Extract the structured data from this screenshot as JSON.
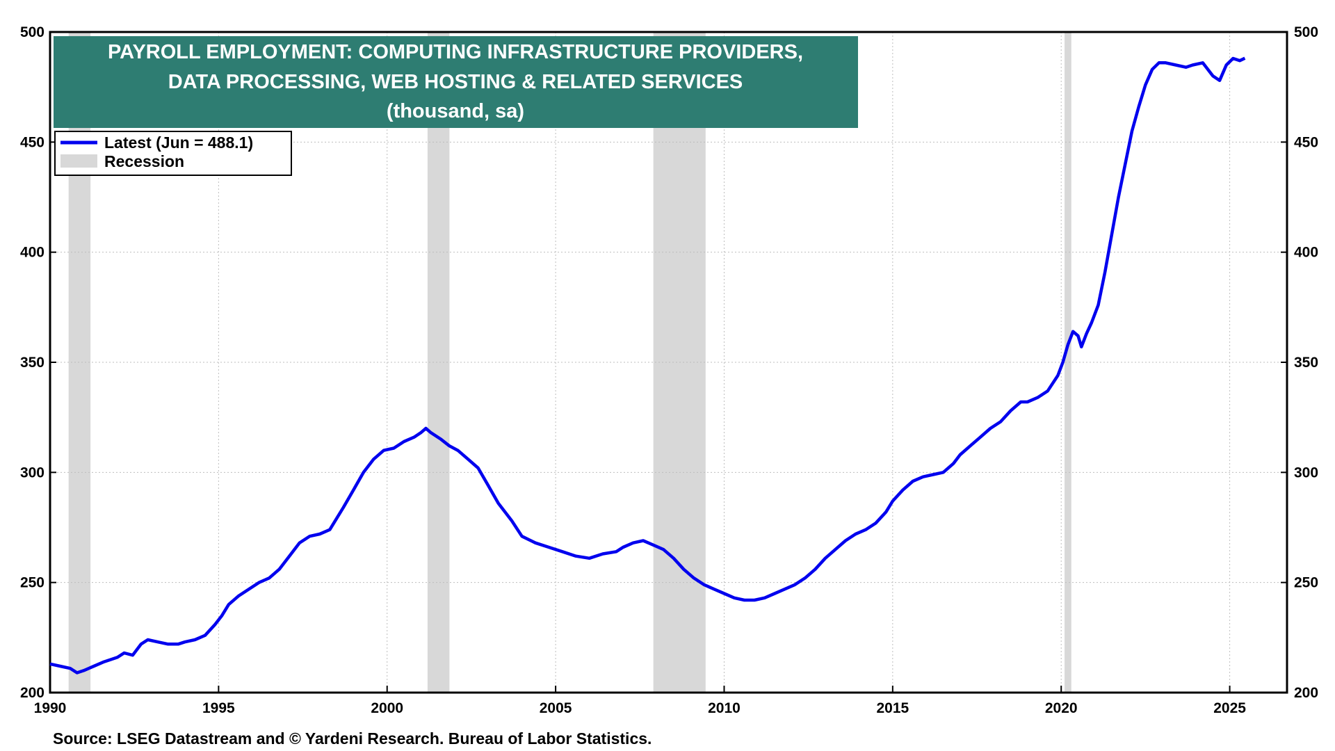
{
  "chart_data": {
    "type": "line",
    "title_lines": [
      "PAYROLL EMPLOYMENT: COMPUTING INFRASTRUCTURE PROVIDERS,",
      "DATA PROCESSING, WEB HOSTING & RELATED SERVICES",
      "(thousand, sa)"
    ],
    "source": "Source: LSEG Datastream and © Yardeni Research. Bureau of Labor Statistics.",
    "legend": {
      "placement": "top-left",
      "latest_label": "Latest (Jun = 488.1)",
      "recession_label": "Recession"
    },
    "xlim": [
      1990,
      2026.7
    ],
    "ylim": [
      200,
      500
    ],
    "x_ticks": [
      1990,
      1995,
      2000,
      2005,
      2010,
      2015,
      2020,
      2025
    ],
    "x_tick_labels": [
      "1990",
      "1995",
      "2000",
      "2005",
      "2010",
      "2015",
      "2020",
      "2025"
    ],
    "y_ticks": [
      200,
      250,
      300,
      350,
      400,
      450,
      500
    ],
    "y_tick_labels": [
      "200",
      "250",
      "300",
      "350",
      "400",
      "450",
      "500"
    ],
    "grid": true,
    "colors": {
      "series": "#0000ee",
      "recession": "#d8d8d8",
      "title_bg": "#2e7d72",
      "grid": "#bdbdbd"
    },
    "recessions": [
      [
        1990.55,
        1991.2
      ],
      [
        2001.2,
        2001.85
      ],
      [
        2007.9,
        2009.45
      ],
      [
        2020.1,
        2020.3
      ]
    ],
    "series": [
      {
        "x": [
          1990.0,
          1990.3,
          1990.6,
          1990.8,
          1991.0,
          1991.3,
          1991.6,
          1991.8,
          1992.0,
          1992.2,
          1992.45,
          1992.7,
          1992.9,
          1993.2,
          1993.5,
          1993.8,
          1994.0,
          1994.3,
          1994.6,
          1994.9,
          1995.1,
          1995.3,
          1995.6,
          1995.9,
          1996.2,
          1996.5,
          1996.8,
          1997.1,
          1997.4,
          1997.7,
          1998.0,
          1998.3,
          1998.5,
          1998.7,
          1999.0,
          1999.3,
          1999.6,
          1999.9,
          2000.2,
          2000.5,
          2000.8,
          2001.0,
          2001.15,
          2001.3,
          2001.6,
          2001.85,
          2002.1,
          2002.4,
          2002.7,
          2003.0,
          2003.3,
          2003.7,
          2004.0,
          2004.4,
          2004.8,
          2005.2,
          2005.6,
          2006.0,
          2006.4,
          2006.8,
          2007.0,
          2007.3,
          2007.6,
          2007.9,
          2008.2,
          2008.5,
          2008.8,
          2009.1,
          2009.4,
          2009.7,
          2010.0,
          2010.3,
          2010.6,
          2010.9,
          2011.2,
          2011.5,
          2011.8,
          2012.1,
          2012.4,
          2012.7,
          2013.0,
          2013.3,
          2013.6,
          2013.9,
          2014.2,
          2014.5,
          2014.8,
          2015.0,
          2015.3,
          2015.6,
          2015.9,
          2016.2,
          2016.5,
          2016.8,
          2017.0,
          2017.3,
          2017.6,
          2017.9,
          2018.2,
          2018.5,
          2018.8,
          2019.0,
          2019.3,
          2019.6,
          2019.9,
          2020.05,
          2020.2,
          2020.35,
          2020.5,
          2020.6,
          2020.75,
          2020.9,
          2021.1,
          2021.3,
          2021.5,
          2021.7,
          2021.9,
          2022.1,
          2022.3,
          2022.5,
          2022.7,
          2022.9,
          2023.1,
          2023.4,
          2023.7,
          2023.9,
          2024.2,
          2024.5,
          2024.7,
          2024.9,
          2025.1,
          2025.3,
          2025.45
        ],
        "values": [
          213,
          212,
          211,
          209,
          210,
          212,
          214,
          215,
          216,
          218,
          217,
          222,
          224,
          223,
          222,
          222,
          223,
          224,
          226,
          231,
          235,
          240,
          244,
          247,
          250,
          252,
          256,
          262,
          268,
          271,
          272,
          274,
          279,
          284,
          292,
          300,
          306,
          310,
          311,
          314,
          316,
          318,
          320,
          318,
          315,
          312,
          310,
          306,
          302,
          294,
          286,
          278,
          271,
          268,
          266,
          264,
          262,
          261,
          263,
          264,
          266,
          268,
          269,
          267,
          265,
          261,
          256,
          252,
          249,
          247,
          245,
          243,
          242,
          242,
          243,
          245,
          247,
          249,
          252,
          256,
          261,
          265,
          269,
          272,
          274,
          277,
          282,
          287,
          292,
          296,
          298,
          299,
          300,
          304,
          308,
          312,
          316,
          320,
          323,
          328,
          332,
          332,
          334,
          337,
          344,
          350,
          358,
          364,
          362,
          357,
          363,
          368,
          376,
          391,
          408,
          425,
          440,
          455,
          466,
          476,
          483,
          486,
          486,
          485,
          484,
          485,
          486,
          480,
          478,
          485,
          488,
          487,
          488.1
        ]
      }
    ]
  }
}
